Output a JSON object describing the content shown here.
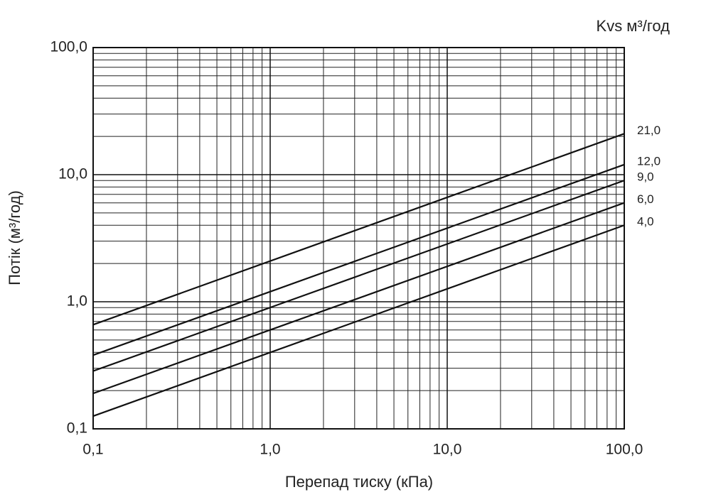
{
  "chart_data": {
    "type": "line",
    "title": "Kvs м³/год",
    "x_label": "Перепад тиску (кПа)",
    "y_label": "Потік (м³/год)",
    "x_scale": "log",
    "y_scale": "log",
    "grid": true,
    "color": "#111111",
    "x": [
      0.1,
      100
    ],
    "series": [
      {
        "name": "21,0",
        "values": [
          0.66,
          21
        ]
      },
      {
        "name": "12,0",
        "values": [
          0.38,
          12
        ]
      },
      {
        "name": "9,0",
        "values": [
          0.285,
          9
        ]
      },
      {
        "name": "6,0",
        "values": [
          0.19,
          6
        ]
      },
      {
        "name": "4,0",
        "values": [
          0.126,
          4
        ]
      }
    ],
    "xlim": [
      0.1,
      100
    ],
    "ylim": [
      0.1,
      100
    ],
    "xticks": [
      {
        "value": 0.1,
        "label": "0,1"
      },
      {
        "value": 1,
        "label": "1,0"
      },
      {
        "value": 10,
        "label": "10,0"
      },
      {
        "value": 100,
        "label": "100,0"
      }
    ],
    "yticks": [
      {
        "value": 0.1,
        "label": "0,1"
      },
      {
        "value": 1,
        "label": "1,0"
      },
      {
        "value": 10,
        "label": "10,0"
      },
      {
        "value": 100,
        "label": "100,0"
      }
    ],
    "x_minor_grid": [
      0.2,
      0.3,
      0.4,
      0.5,
      0.6,
      0.7,
      0.8,
      0.9,
      2,
      3,
      4,
      5,
      6,
      7,
      8,
      9,
      20,
      30,
      40,
      50,
      60,
      70,
      80,
      90
    ],
    "y_minor_grid": [
      0.2,
      0.3,
      0.4,
      0.5,
      0.6,
      0.7,
      0.8,
      0.9,
      2,
      3,
      4,
      5,
      6,
      7,
      8,
      9,
      20,
      30,
      40,
      50,
      60,
      70,
      80,
      90
    ]
  }
}
